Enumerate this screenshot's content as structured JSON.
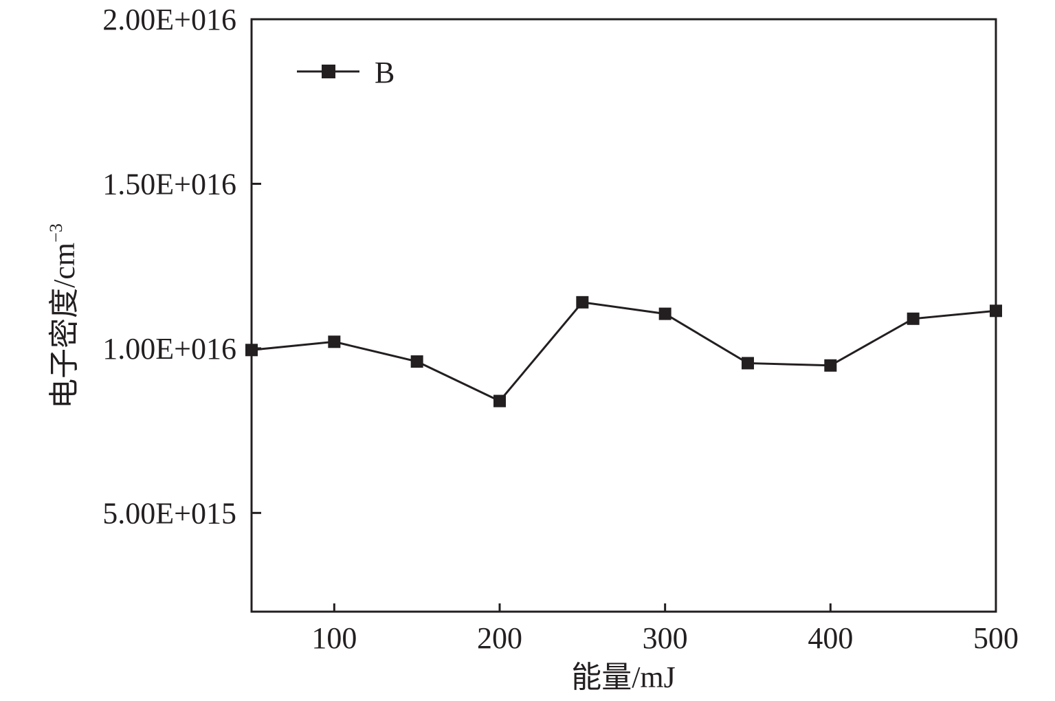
{
  "chart_data": {
    "type": "line",
    "title": "",
    "xlabel": "能量/mJ",
    "ylabel": "电子密度/cm",
    "ylabel_superscript": "−3",
    "xlim": [
      50,
      500
    ],
    "ylim": [
      2000000000000000,
      20000000000000000
    ],
    "x_ticks": [
      100,
      200,
      300,
      400,
      500
    ],
    "x_tick_labels": [
      "100",
      "200",
      "300",
      "400",
      "500"
    ],
    "y_ticks": [
      5000000000000000,
      10000000000000000,
      15000000000000000,
      20000000000000000
    ],
    "y_tick_labels": [
      "5.00E+015",
      "1.00E+016",
      "1.50E+016",
      "2.00E+016"
    ],
    "grid": false,
    "legend_position": "top-left",
    "colors": {
      "line": "#231f20",
      "marker": "#231f20",
      "axis": "#231f20"
    },
    "series": [
      {
        "name": "B",
        "marker": "square",
        "x": [
          50,
          100,
          150,
          200,
          250,
          300,
          350,
          400,
          450,
          500
        ],
        "y": [
          9950000000000000,
          10200000000000000,
          9600000000000000,
          8400000000000000,
          11400000000000000,
          11050000000000000,
          9550000000000000,
          9480000000000000,
          10900000000000000,
          11140000000000000
        ]
      }
    ]
  }
}
